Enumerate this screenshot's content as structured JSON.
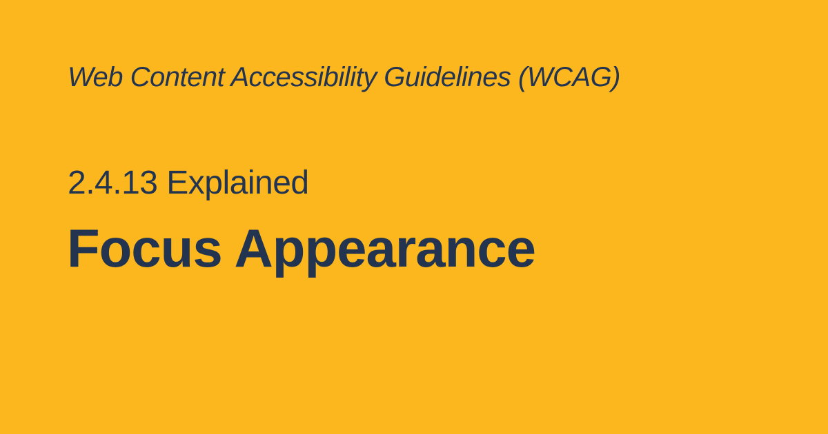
{
  "kicker": "Web Content Accessibility Guidelines (WCAG)",
  "subtitle": "2.4.13 Explained",
  "title": "Focus Appearance",
  "colors": {
    "background": "#FDB71E",
    "text": "#22344F"
  }
}
